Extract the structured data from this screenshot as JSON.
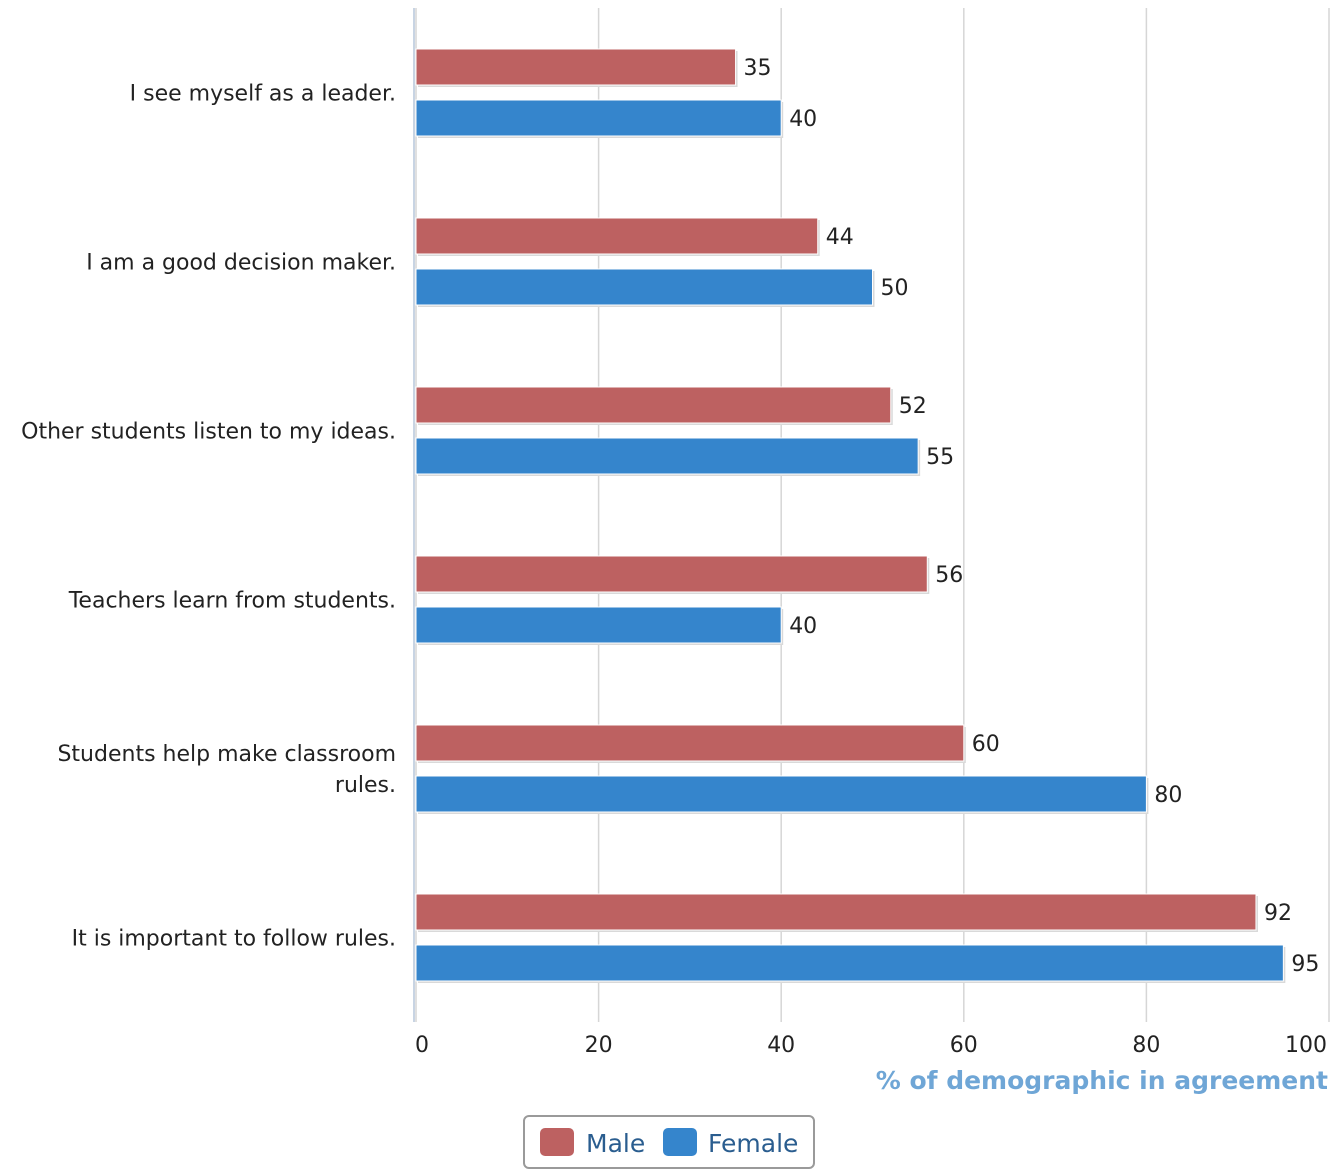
{
  "chart_data": {
    "type": "bar",
    "orientation": "horizontal",
    "categories": [
      [
        "I see myself as a leader."
      ],
      [
        "I am a good decision maker."
      ],
      [
        "Other students listen to my ideas."
      ],
      [
        "Teachers learn from students."
      ],
      [
        "Students help make classroom",
        "rules."
      ],
      [
        "It is important to follow rules."
      ]
    ],
    "series": [
      {
        "name": "Male",
        "color": "#bd6161",
        "values": [
          35,
          44,
          52,
          56,
          60,
          92
        ]
      },
      {
        "name": "Female",
        "color": "#3585cc",
        "values": [
          40,
          50,
          55,
          40,
          80,
          95
        ]
      }
    ],
    "xlabel": "% of demographic in agreement",
    "xlim": [
      0,
      100
    ],
    "xticks": [
      0,
      20,
      40,
      60,
      80,
      100
    ],
    "grid": true,
    "data_labels": true,
    "legend": "bottom-center"
  }
}
